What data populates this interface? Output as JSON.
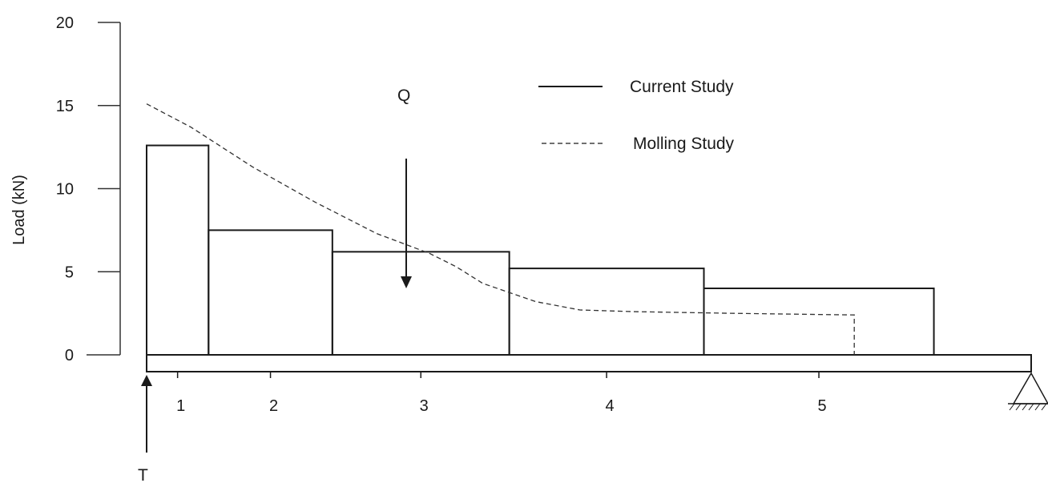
{
  "chart_data": {
    "type": "bar",
    "title": "",
    "ylabel": "Load (kN)",
    "xlabel": "",
    "ylim": [
      0,
      20
    ],
    "yticks": [
      0,
      5,
      10,
      15,
      20
    ],
    "grid": false,
    "legend": {
      "placement": "top-right",
      "entries": [
        {
          "label": "Current Study",
          "style": "solid"
        },
        {
          "label": "Molling Study",
          "style": "dashed"
        }
      ]
    },
    "segment_labels": [
      "1",
      "2",
      "3",
      "4",
      "5"
    ],
    "series": [
      {
        "name": "Current Study",
        "kind": "step-bars",
        "bars": [
          {
            "x0": 0.0,
            "x1": 0.7,
            "value": 12.6
          },
          {
            "x0": 0.7,
            "x1": 2.1,
            "value": 7.5
          },
          {
            "x0": 2.1,
            "x1": 4.1,
            "value": 6.2
          },
          {
            "x0": 4.1,
            "x1": 6.3,
            "value": 5.2
          },
          {
            "x0": 6.3,
            "x1": 8.9,
            "value": 4.0
          }
        ]
      },
      {
        "name": "Molling Study",
        "kind": "line",
        "points": [
          {
            "x": 0.0,
            "y": 15.1
          },
          {
            "x": 0.5,
            "y": 13.7
          },
          {
            "x": 1.2,
            "y": 11.3
          },
          {
            "x": 1.9,
            "y": 9.2
          },
          {
            "x": 2.6,
            "y": 7.3
          },
          {
            "x": 3.2,
            "y": 6.1
          },
          {
            "x": 3.5,
            "y": 5.3
          },
          {
            "x": 3.8,
            "y": 4.3
          },
          {
            "x": 4.4,
            "y": 3.2
          },
          {
            "x": 4.9,
            "y": 2.7
          },
          {
            "x": 5.5,
            "y": 2.6
          },
          {
            "x": 6.6,
            "y": 2.5
          },
          {
            "x": 8.0,
            "y": 2.4
          },
          {
            "x": 8.0,
            "y": 0.0
          }
        ]
      }
    ],
    "annotations": [
      {
        "label": "Q",
        "kind": "arrow-down",
        "x": 2.95
      },
      {
        "label": "T",
        "kind": "arrow-up",
        "x": 0.0
      }
    ]
  }
}
